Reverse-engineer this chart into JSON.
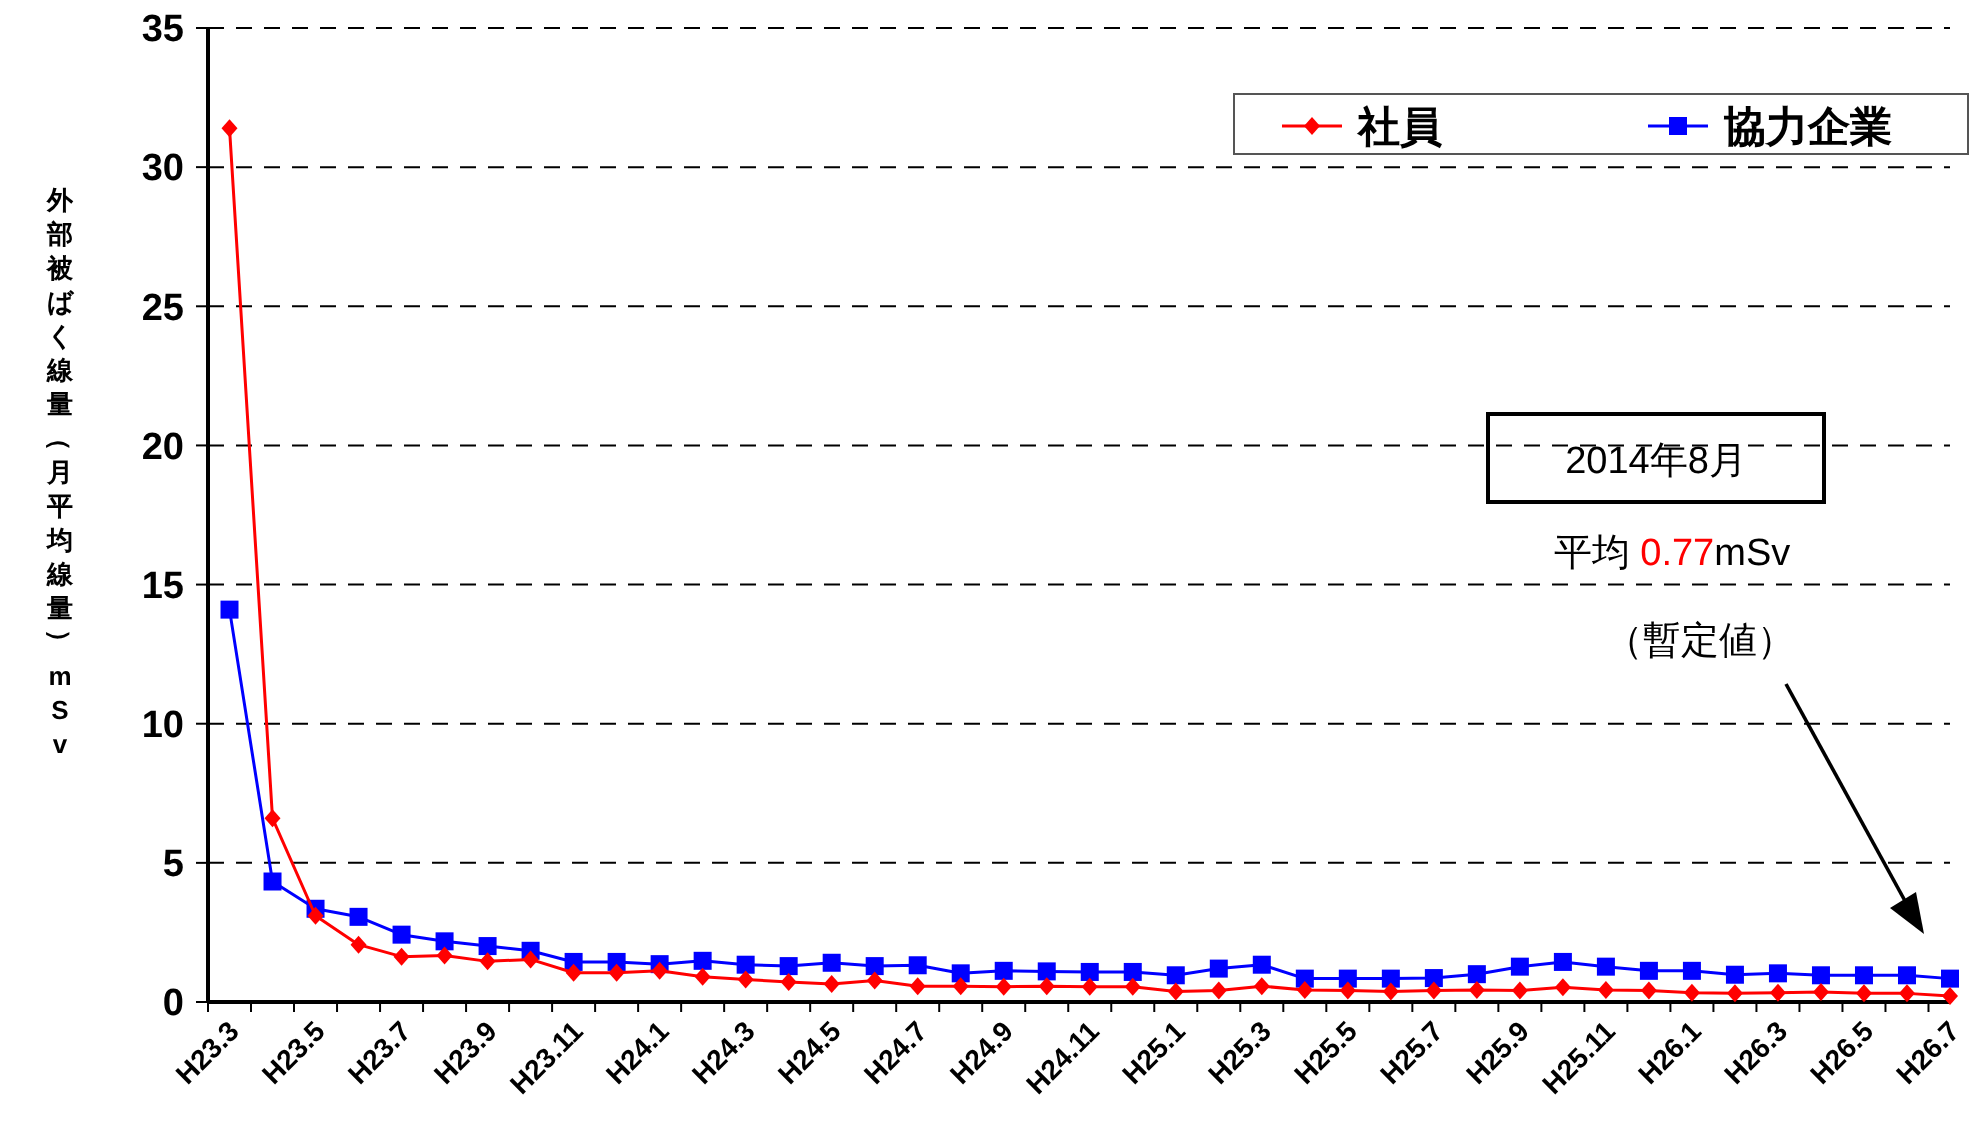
{
  "chart_data": {
    "type": "line",
    "ylabel": "外部被ばく線量（月平均線量）mSv",
    "categories": [
      "H23.3",
      null,
      "H23.5",
      null,
      "H23.7",
      null,
      "H23.9",
      null,
      "H23.11",
      null,
      "H24.1",
      null,
      "H24.3",
      null,
      "H24.5",
      null,
      "H24.7",
      null,
      "H24.9",
      null,
      "H24.11",
      null,
      "H25.1",
      null,
      "H25.3",
      null,
      "H25.5",
      null,
      "H25.7",
      null,
      "H25.9",
      null,
      "H25.11",
      null,
      "H26.1",
      null,
      "H26.3",
      null,
      "H26.5",
      null,
      "H26.7"
    ],
    "series": [
      {
        "name": "社員",
        "color": "#ff0000",
        "marker": "diamond",
        "values": [
          31.4,
          6.6,
          3.1,
          2.06,
          1.63,
          1.67,
          1.46,
          1.53,
          1.05,
          1.05,
          1.12,
          0.91,
          0.81,
          0.72,
          0.65,
          0.77,
          0.57,
          0.57,
          0.55,
          0.57,
          0.55,
          0.55,
          0.38,
          0.41,
          0.57,
          0.43,
          0.41,
          0.38,
          0.41,
          0.43,
          0.41,
          0.53,
          0.43,
          0.41,
          0.33,
          0.31,
          0.33,
          0.36,
          0.31,
          0.31,
          0.22
        ]
      },
      {
        "name": "協力企業",
        "color": "#0000ff",
        "marker": "square",
        "values": [
          14.1,
          4.33,
          3.35,
          3.06,
          2.42,
          2.18,
          2.01,
          1.84,
          1.44,
          1.44,
          1.36,
          1.48,
          1.34,
          1.29,
          1.41,
          1.29,
          1.32,
          1.03,
          1.12,
          1.1,
          1.08,
          1.08,
          0.96,
          1.2,
          1.34,
          0.84,
          0.84,
          0.84,
          0.86,
          1.0,
          1.27,
          1.44,
          1.27,
          1.12,
          1.12,
          0.98,
          1.03,
          0.96,
          0.96,
          0.96,
          0.84
        ]
      }
    ],
    "ylim": [
      0,
      35
    ],
    "yticks": [
      0,
      5,
      10,
      15,
      20,
      25,
      30,
      35
    ],
    "grid": "y",
    "legend": "top right",
    "line_style": "solid",
    "annotations": [
      "2014年8月",
      "平均 0.77mSv",
      "（暫定値）"
    ]
  }
}
